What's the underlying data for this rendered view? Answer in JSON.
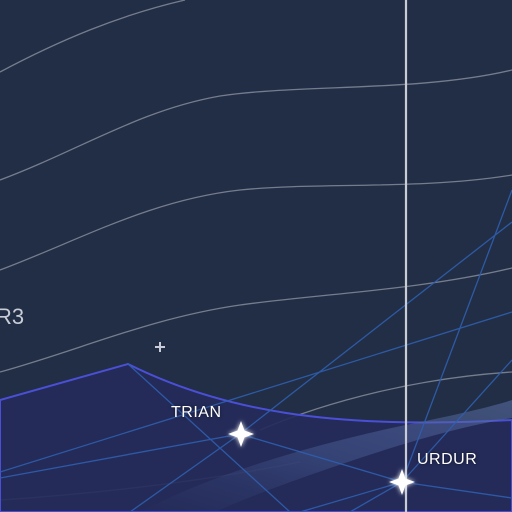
{
  "map": {
    "theme": "dark-aviation-chart",
    "colors": {
      "background": "#222e45",
      "airspace_fill": "#252b5a",
      "airspace_border": "#4a4fd6",
      "contour_lines": "#8a90a0",
      "airway_lines": "#2f5fb0",
      "meridian": "#c9ccd4"
    },
    "route_label": "R3",
    "waypoints": [
      {
        "name": "TRIAN",
        "icon": "four-point-star-icon"
      },
      {
        "name": "URDUR",
        "icon": "four-point-star-icon"
      }
    ],
    "small_marker_icon": "plus-icon"
  }
}
